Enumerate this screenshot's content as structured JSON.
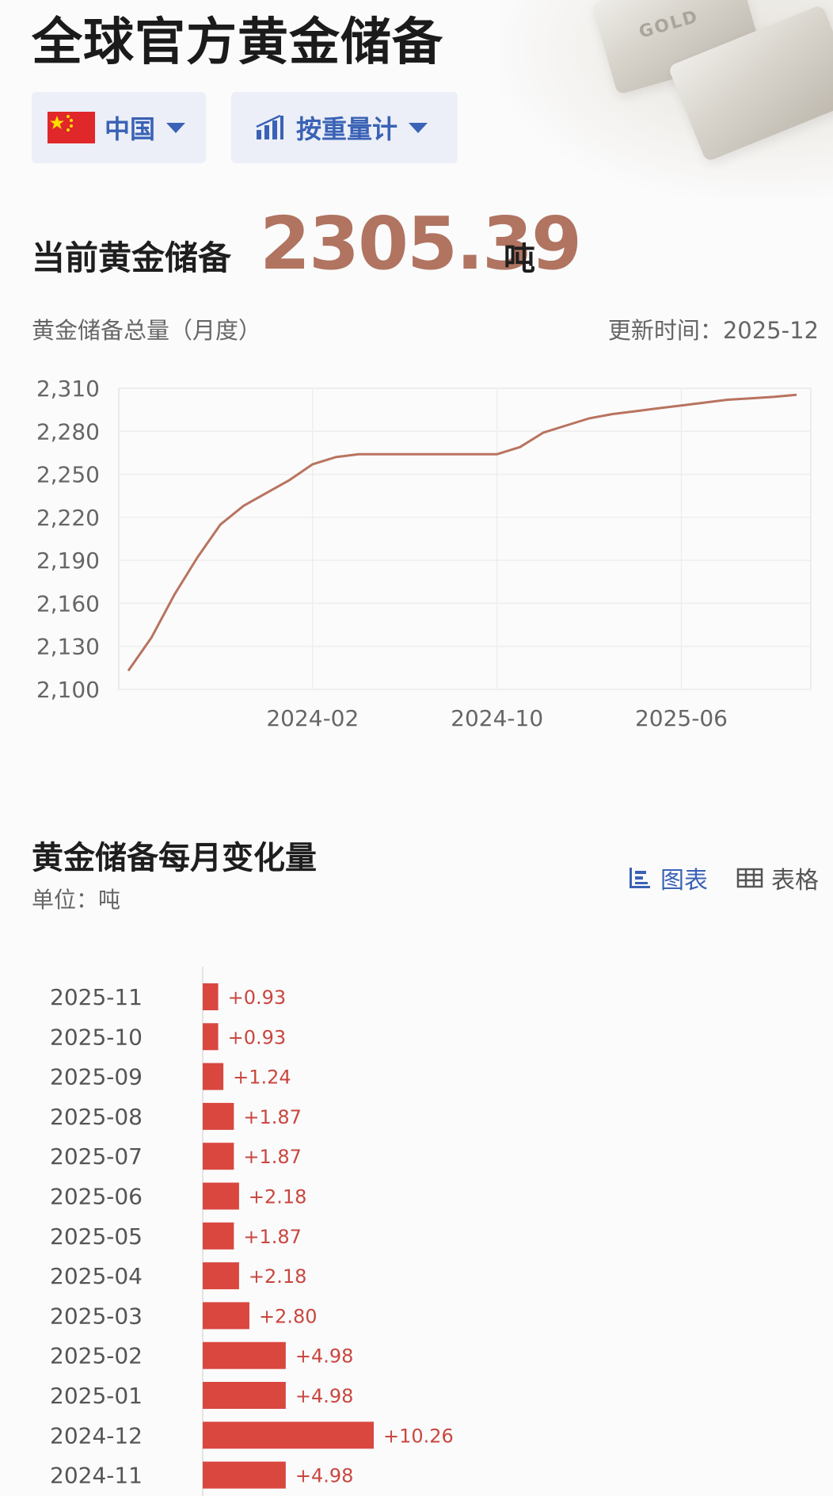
{
  "header": {
    "title": "全球官方黄金储备",
    "bg_text": "GOLD"
  },
  "filters": {
    "country": "中国",
    "unit_mode": "按重量计"
  },
  "current": {
    "label": "当前黄金储备",
    "value": "2305.39",
    "unit": "吨"
  },
  "line_section": {
    "subtitle": "黄金储备总量（月度）",
    "update_time": "更新时间：2025-12"
  },
  "bar_section": {
    "title": "黄金储备每月变化量",
    "unit": "单位：吨",
    "toggle_chart": "图表",
    "toggle_table": "表格"
  },
  "colors": {
    "accent_blue": "#3a62b5",
    "line": "#b9735f",
    "bar": "#d9473f",
    "value_text": "#b07461"
  },
  "chart_data": [
    {
      "type": "line",
      "title": "黄金储备总量（月度）",
      "x": [
        "2023-06",
        "2023-07",
        "2023-08",
        "2023-09",
        "2023-10",
        "2023-11",
        "2023-12",
        "2024-01",
        "2024-02",
        "2024-03",
        "2024-04",
        "2024-05",
        "2024-06",
        "2024-07",
        "2024-08",
        "2024-09",
        "2024-10",
        "2024-11",
        "2024-12",
        "2025-01",
        "2025-02",
        "2025-03",
        "2025-04",
        "2025-05",
        "2025-06",
        "2025-07",
        "2025-08",
        "2025-09",
        "2025-10",
        "2025-11"
      ],
      "series": [
        {
          "values": [
            2113,
            2136,
            2166,
            2192,
            2215,
            2228,
            2237,
            2246,
            2257,
            2262,
            2264,
            2264,
            2264,
            2264,
            2264,
            2264,
            2264,
            2269,
            2279,
            2284,
            2289,
            2292,
            2294,
            2296,
            2298,
            2300,
            2302,
            2303,
            2304,
            2305.39
          ]
        }
      ],
      "x_ticks": [
        "2024-02",
        "2024-10",
        "2025-06"
      ],
      "y_ticks": [
        2100,
        2130,
        2160,
        2190,
        2220,
        2250,
        2280,
        2310
      ],
      "ylim": [
        2100,
        2310
      ],
      "grid": true
    },
    {
      "type": "bar",
      "orientation": "horizontal",
      "title": "黄金储备每月变化量",
      "categories": [
        "2025-11",
        "2025-10",
        "2025-09",
        "2025-08",
        "2025-07",
        "2025-06",
        "2025-05",
        "2025-04",
        "2025-03",
        "2025-02",
        "2025-01",
        "2024-12",
        "2024-11"
      ],
      "values": [
        0.93,
        0.93,
        1.24,
        1.87,
        1.87,
        2.18,
        1.87,
        2.18,
        2.8,
        4.98,
        4.98,
        10.26,
        4.98
      ],
      "value_labels": [
        "+0.93",
        "+0.93",
        "+1.24",
        "+1.87",
        "+1.87",
        "+2.18",
        "+1.87",
        "+2.18",
        "+2.80",
        "+4.98",
        "+4.98",
        "+10.26",
        "+4.98"
      ]
    }
  ]
}
